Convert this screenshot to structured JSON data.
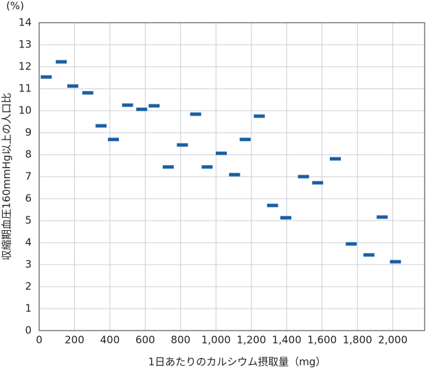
{
  "chart_data": {
    "type": "scatter",
    "marker": "dash",
    "unit_label": "(%)",
    "x_label": "1日あたりのカルシウム摂取量（mg）",
    "y_label": "収縮期血圧160mmHg以上の人口比",
    "series": [
      {
        "color": "#1a5fa0",
        "x": [
          40,
          125,
          190,
          275,
          350,
          420,
          500,
          580,
          650,
          730,
          810,
          885,
          950,
          1030,
          1105,
          1165,
          1245,
          1320,
          1395,
          1495,
          1575,
          1675,
          1765,
          1865,
          1940,
          2015
        ],
        "values": [
          11.53,
          12.22,
          11.12,
          10.81,
          9.31,
          8.69,
          10.25,
          10.06,
          10.22,
          7.44,
          8.44,
          9.84,
          7.44,
          8.06,
          7.09,
          8.69,
          9.75,
          5.69,
          5.13,
          7.0,
          6.72,
          7.81,
          3.94,
          3.44,
          5.16,
          3.13
        ]
      }
    ],
    "xlim": [
      0,
      2180
    ],
    "ylim": [
      0,
      14
    ],
    "xticks": [
      0,
      200,
      400,
      600,
      800,
      {
        "value": 1000,
        "label": "1,000"
      },
      {
        "value": 1200,
        "label": "1,200"
      },
      {
        "value": 1400,
        "label": "1,400"
      },
      {
        "value": 1600,
        "label": "1,600"
      },
      {
        "value": 1800,
        "label": "1,800"
      },
      {
        "value": 2000,
        "label": "2,000"
      }
    ],
    "yticks": [
      0,
      1,
      2,
      3,
      4,
      5,
      6,
      7,
      8,
      9,
      10,
      11,
      12,
      13,
      14
    ],
    "grid": true
  }
}
